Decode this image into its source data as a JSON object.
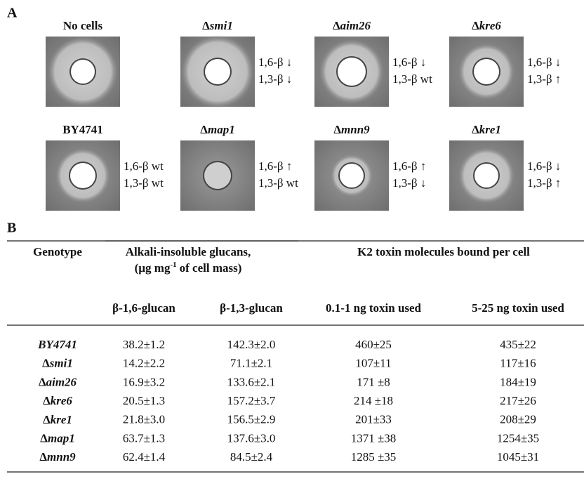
{
  "panel_a": {
    "label": "A",
    "plates": [
      {
        "title": "No cells",
        "notes": []
      },
      {
        "title": "Δsmi1",
        "notes": [
          "1,6-β ↓",
          "1,3-β ↓"
        ]
      },
      {
        "title": "Δaim26",
        "notes": [
          "1,6-β ↓",
          "1,3-β wt"
        ]
      },
      {
        "title": "Δkre6",
        "notes": [
          "1,6-β ↓",
          "1,3-β ↑"
        ]
      },
      {
        "title": "BY4741",
        "notes": [
          "1,6-β wt",
          "1,3-β wt"
        ]
      },
      {
        "title": "Δmap1",
        "notes": [
          "1,6-β ↑",
          "1,3-β wt"
        ]
      },
      {
        "title": "Δmnn9",
        "notes": [
          "1,6-β ↑",
          "1,3-β ↓"
        ]
      },
      {
        "title": "Δkre1",
        "notes": [
          "1,6-β ↓",
          "1,3-β ↑"
        ]
      }
    ]
  },
  "panel_b": {
    "label": "B",
    "table": {
      "header": {
        "genotype": "Genotype",
        "glucans": "Alkali-insoluble glucans,",
        "glucans_unit": [
          "(µg mg",
          "-1",
          "of cell mass)"
        ],
        "toxin": "K2 toxin molecules bound per cell"
      },
      "subheader": [
        "β-1,6-glucan",
        "β-1,3-glucan",
        "0.1-1 ng toxin used",
        "5-25 ng toxin used"
      ],
      "rows": [
        [
          "BY4741",
          "38.2±1.2",
          "142.3±2.0",
          "460±25",
          "435±22"
        ],
        [
          "Δsmi1",
          "14.2±2.2",
          "71.1±2.1",
          "107±11",
          "117±16"
        ],
        [
          "Δaim26",
          "16.9±3.2",
          "133.6±2.1",
          "171 ±8",
          "184±19"
        ],
        [
          "Δkre6",
          "20.5±1.3",
          "157.2±3.7",
          "214 ±18",
          "217±26"
        ],
        [
          "Δkre1",
          "21.8±3.0",
          "156.5±2.9",
          "201±33",
          "208±29"
        ],
        [
          "Δmap1",
          "63.7±1.3",
          "137.6±3.0",
          "1371 ±38",
          "1254±35"
        ],
        [
          "Δmnn9",
          "62.4±1.4",
          "84.5±2.4",
          "1285 ±35",
          "1045±31"
        ]
      ]
    }
  }
}
